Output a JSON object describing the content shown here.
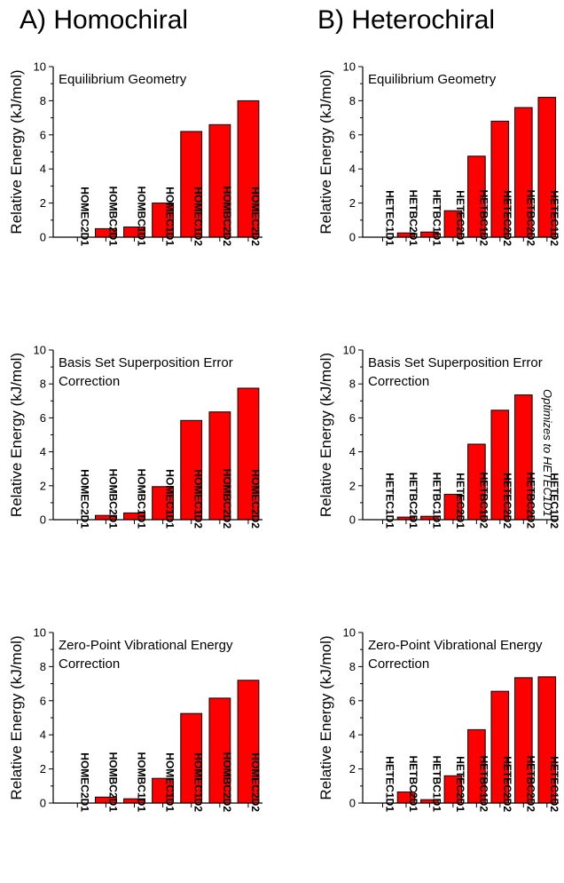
{
  "columns": [
    {
      "title": "A) Homochiral"
    },
    {
      "title": "B) Heterochiral"
    }
  ],
  "chart_data": [
    {
      "type": "bar",
      "title": "Equilibrium Geometry",
      "ylabel": "Relative Energy (kJ/mol)",
      "ylim": [
        0,
        10
      ],
      "yticks": [
        0,
        2,
        4,
        6,
        8,
        10
      ],
      "categories": [
        "HOMEC2D1",
        "HOMBC2D1",
        "HOMBC1D1",
        "HOMEC1D1",
        "HOMEC1D2",
        "HOMBC2D2",
        "HOMEC2D2"
      ],
      "values": [
        0,
        0.5,
        0.6,
        2.0,
        6.2,
        6.6,
        8.0
      ],
      "bar_color": "#ff0000"
    },
    {
      "type": "bar",
      "title": "Equilibrium Geometry",
      "ylabel": "Relative Energy (kJ/mol)",
      "ylim": [
        0,
        10
      ],
      "yticks": [
        0,
        2,
        4,
        6,
        8,
        10
      ],
      "categories": [
        "HETEC1D1",
        "HETBC2D1",
        "HETBC1D1",
        "HETEC2D1",
        "HETBC1D2",
        "HETEC2D2",
        "HETBC2D2",
        "HETEC1D2"
      ],
      "values": [
        0,
        0.25,
        0.3,
        1.55,
        4.75,
        6.8,
        7.6,
        8.2
      ],
      "bar_color": "#ff0000"
    },
    {
      "type": "bar",
      "title": "Basis Set Superposition Error Correction",
      "title_lines": [
        "Basis Set Superposition Error",
        "Correction"
      ],
      "ylabel": "Relative Energy (kJ/mol)",
      "ylim": [
        0,
        10
      ],
      "yticks": [
        0,
        2,
        4,
        6,
        8,
        10
      ],
      "categories": [
        "HOMEC2D1",
        "HOMBC2D1",
        "HOMBC1D1",
        "HOMEC1D1",
        "HOMEC1D2",
        "HOMBC2D2",
        "HOMEC2D2"
      ],
      "values": [
        0,
        0.25,
        0.4,
        1.95,
        5.85,
        6.35,
        7.75
      ],
      "bar_color": "#ff0000"
    },
    {
      "type": "bar",
      "title": "Basis Set Superposition Error Correction",
      "title_lines": [
        "Basis Set Superposition Error",
        "Correction"
      ],
      "ylabel": "Relative Energy (kJ/mol)",
      "ylim": [
        0,
        10
      ],
      "yticks": [
        0,
        2,
        4,
        6,
        8,
        10
      ],
      "categories": [
        "HETEC1D1",
        "HETBC2D1",
        "HETBC1D1",
        "HETEC2D1",
        "HETBC1D2",
        "HETEC2D2",
        "HETBC2D2",
        "HETEC1D2"
      ],
      "values": [
        0,
        0.15,
        0.2,
        1.5,
        4.45,
        6.45,
        7.35,
        null
      ],
      "annotation": "Optimizes to HETEC1D1",
      "bar_color": "#ff0000"
    },
    {
      "type": "bar",
      "title": "Zero-Point Vibrational Energy Correction",
      "title_lines": [
        "Zero-Point Vibrational Energy",
        "Correction"
      ],
      "ylabel": "Relative Energy (kJ/mol)",
      "ylim": [
        0,
        10
      ],
      "yticks": [
        0,
        2,
        4,
        6,
        8,
        10
      ],
      "categories": [
        "HOMEC2D1",
        "HOMBC2D1",
        "HOMBC1D1",
        "HOMEC1D1",
        "HOMEC1D2",
        "HOMBC2D2",
        "HOMEC2D2"
      ],
      "values": [
        0,
        0.35,
        0.25,
        1.45,
        5.25,
        6.15,
        7.2
      ],
      "bar_color": "#ff0000"
    },
    {
      "type": "bar",
      "title": "Zero-Point Vibrational Energy Correction",
      "title_lines": [
        "Zero-Point Vibrational Energy",
        "Correction"
      ],
      "ylabel": "Relative Energy (kJ/mol)",
      "ylim": [
        0,
        10
      ],
      "yticks": [
        0,
        2,
        4,
        6,
        8,
        10
      ],
      "categories": [
        "HETEC1D1",
        "HETBC2D1",
        "HETBC1D1",
        "HETEC2D1",
        "HETBC1D2",
        "HETEC2D2",
        "HETBC2D2",
        "HETEC1D2"
      ],
      "values": [
        0,
        0.65,
        0.2,
        1.6,
        4.3,
        6.55,
        7.35,
        7.4
      ],
      "bar_color": "#ff0000"
    }
  ]
}
